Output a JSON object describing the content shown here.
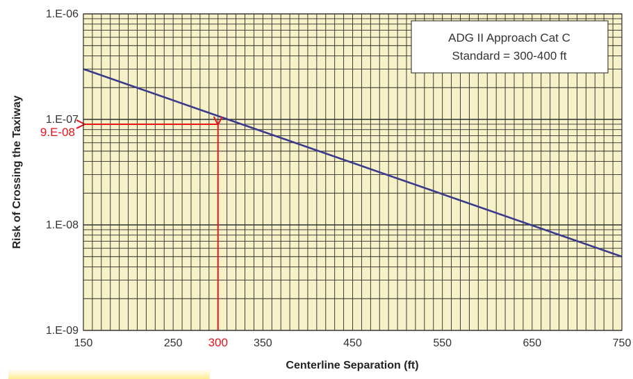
{
  "chart_data": {
    "type": "line",
    "x": [
      150,
      750
    ],
    "series": [
      {
        "values": [
          3e-07,
          5e-09
        ],
        "color": "#3a3a8c"
      }
    ],
    "xlabel": "Centerline Separation (ft)",
    "ylabel": "Risk of Crossing the Taxiway",
    "xlim": [
      150,
      750
    ],
    "ylim": [
      1e-09,
      1e-06
    ],
    "yscale": "log",
    "x_ticks": [
      150,
      250,
      350,
      450,
      550,
      650,
      750
    ],
    "x_tick_labels": [
      "150",
      "250",
      "350",
      "450",
      "550",
      "650",
      "750"
    ],
    "y_ticks": [
      1e-09,
      1e-08,
      1e-07,
      1e-06
    ],
    "y_tick_labels": [
      "1.E-09",
      "1.E-08",
      "1.E-07",
      "1.E-06"
    ],
    "grid": true,
    "plot_background": "#f6f1c6",
    "grid_color": "#2a2a2a",
    "annotation": {
      "x": 300,
      "y": 9e-08,
      "x_label": "300",
      "y_label": "9.E-08",
      "color": "#e8141c"
    },
    "legend": {
      "position": "top-right",
      "lines": [
        "ADG II Approach Cat C",
        "Standard = 300-400 ft"
      ]
    }
  }
}
